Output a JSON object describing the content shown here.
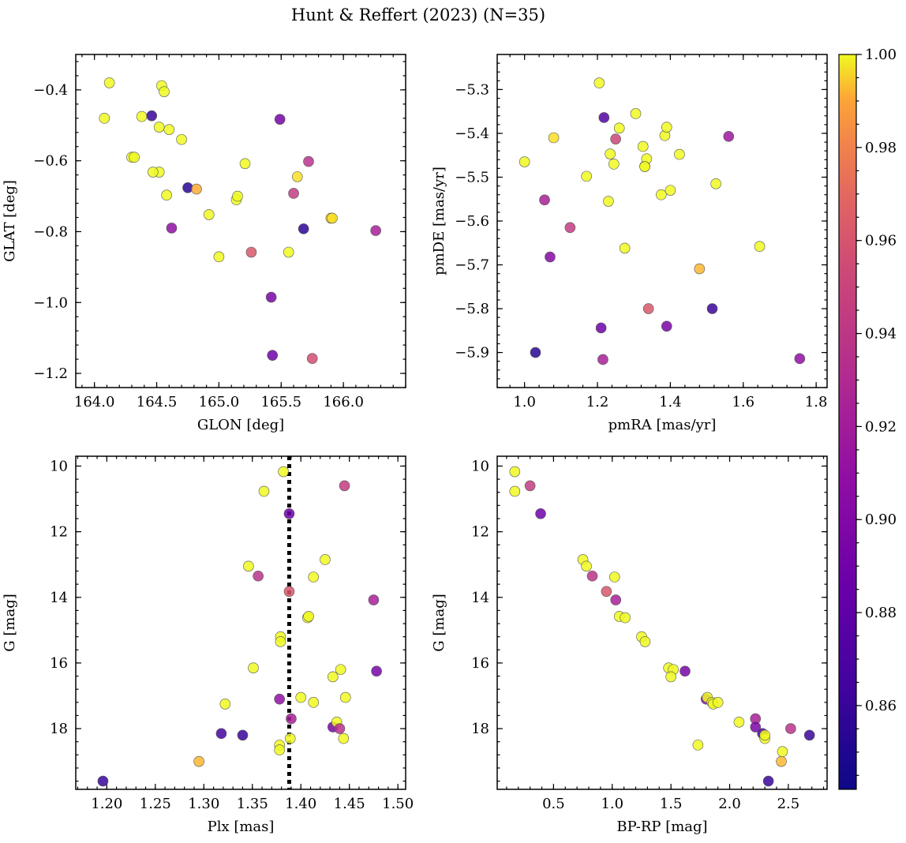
{
  "figure": {
    "title": "Hunt & Reffert (2023) (N=35)"
  },
  "colorbar": {
    "colormap": "plasma",
    "min": 0.842,
    "max": 1.0,
    "ticks": [
      0.86,
      0.88,
      0.9,
      0.92,
      0.94,
      0.96,
      0.98,
      1.0
    ],
    "tick_labels": [
      "0.86",
      "0.88",
      "0.90",
      "0.92",
      "0.94",
      "0.96",
      "0.98",
      "1.00"
    ]
  },
  "chart_data": [
    {
      "type": "scatter",
      "id": "glon-glat",
      "xlabel": "GLON [deg]",
      "ylabel": "GLAT [deg]",
      "xlim": [
        163.85,
        166.5
      ],
      "ylim": [
        -1.24,
        -0.3
      ],
      "y_inverted": false,
      "xticks": [
        164.0,
        164.5,
        165.0,
        165.5,
        166.0
      ],
      "xtick_labels": [
        "164.0",
        "164.5",
        "165.0",
        "165.5",
        "166.0"
      ],
      "yticks": [
        -0.4,
        -0.6,
        -0.8,
        -1.0,
        -1.2
      ],
      "ytick_labels": [
        "−0.4",
        "−0.6",
        "−0.8",
        "−1.0",
        "−1.2"
      ],
      "points": [
        [
          164.08,
          -0.48,
          1.0
        ],
        [
          164.12,
          -0.38,
          1.0
        ],
        [
          164.3,
          -0.59,
          1.0
        ],
        [
          164.32,
          -0.59,
          1.0
        ],
        [
          164.38,
          -0.475,
          1.0
        ],
        [
          164.46,
          -0.473,
          0.855
        ],
        [
          164.52,
          -0.505,
          1.0
        ],
        [
          164.54,
          -0.388,
          1.0
        ],
        [
          164.56,
          -0.405,
          1.0
        ],
        [
          164.52,
          -0.632,
          1.0
        ],
        [
          164.58,
          -0.697,
          1.0
        ],
        [
          164.6,
          -0.512,
          1.0
        ],
        [
          164.62,
          -0.79,
          0.89
        ],
        [
          164.7,
          -0.54,
          1.0
        ],
        [
          164.75,
          -0.676,
          0.85
        ],
        [
          164.82,
          -0.68,
          0.97
        ],
        [
          164.92,
          -0.752,
          1.0
        ],
        [
          165.0,
          -0.871,
          1.0
        ],
        [
          165.14,
          -0.71,
          1.0
        ],
        [
          165.15,
          -0.7,
          1.0
        ],
        [
          165.21,
          -0.608,
          1.0
        ],
        [
          165.26,
          -0.858,
          0.93
        ],
        [
          165.42,
          -0.985,
          0.88
        ],
        [
          165.43,
          -1.149,
          0.875
        ],
        [
          165.49,
          -0.483,
          0.878
        ],
        [
          165.56,
          -0.858,
          1.0
        ],
        [
          165.6,
          -0.692,
          0.915
        ],
        [
          165.63,
          -0.645,
          0.99
        ],
        [
          165.68,
          -0.792,
          0.852
        ],
        [
          165.72,
          -0.602,
          0.91
        ],
        [
          165.75,
          -1.158,
          0.925
        ],
        [
          165.9,
          -0.762,
          0.99
        ],
        [
          165.91,
          -0.762,
          0.99
        ],
        [
          166.26,
          -0.797,
          0.9
        ],
        [
          164.47,
          -0.632,
          1.0
        ]
      ]
    },
    {
      "type": "scatter",
      "id": "pmra-pmde",
      "xlabel": "pmRA [mas/yr]",
      "ylabel": "pmDE [mas/yr]",
      "xlim": [
        0.925,
        1.83
      ],
      "ylim": [
        -5.98,
        -5.22
      ],
      "y_inverted": false,
      "xticks": [
        1.0,
        1.2,
        1.4,
        1.6,
        1.8
      ],
      "xtick_labels": [
        "1.0",
        "1.2",
        "1.4",
        "1.6",
        "1.8"
      ],
      "yticks": [
        -5.3,
        -5.4,
        -5.5,
        -5.6,
        -5.7,
        -5.8,
        -5.9
      ],
      "ytick_labels": [
        "−5.3",
        "−5.4",
        "−5.5",
        "−5.6",
        "−5.7",
        "−5.8",
        "−5.9"
      ],
      "points": [
        [
          1.0,
          -5.465,
          1.0
        ],
        [
          1.03,
          -5.9,
          0.85
        ],
        [
          1.055,
          -5.552,
          0.9
        ],
        [
          1.07,
          -5.682,
          0.885
        ],
        [
          1.08,
          -5.41,
          0.99
        ],
        [
          1.125,
          -5.615,
          0.915
        ],
        [
          1.17,
          -5.498,
          1.0
        ],
        [
          1.205,
          -5.285,
          1.0
        ],
        [
          1.21,
          -5.844,
          0.875
        ],
        [
          1.215,
          -5.916,
          0.9
        ],
        [
          1.218,
          -5.364,
          0.865
        ],
        [
          1.23,
          -5.555,
          1.0
        ],
        [
          1.235,
          -5.447,
          1.0
        ],
        [
          1.245,
          -5.47,
          1.0
        ],
        [
          1.25,
          -5.413,
          0.92
        ],
        [
          1.26,
          -5.388,
          1.0
        ],
        [
          1.275,
          -5.662,
          1.0
        ],
        [
          1.305,
          -5.355,
          1.0
        ],
        [
          1.325,
          -5.43,
          1.0
        ],
        [
          1.33,
          -5.475,
          1.0
        ],
        [
          1.335,
          -5.458,
          1.0
        ],
        [
          1.34,
          -5.8,
          0.93
        ],
        [
          1.375,
          -5.54,
          1.0
        ],
        [
          1.385,
          -5.405,
          1.0
        ],
        [
          1.39,
          -5.84,
          0.88
        ],
        [
          1.39,
          -5.386,
          1.0
        ],
        [
          1.4,
          -5.53,
          1.0
        ],
        [
          1.425,
          -5.448,
          1.0
        ],
        [
          1.48,
          -5.709,
          0.975
        ],
        [
          1.515,
          -5.8,
          0.855
        ],
        [
          1.525,
          -5.515,
          1.0
        ],
        [
          1.56,
          -5.407,
          0.895
        ],
        [
          1.645,
          -5.658,
          1.0
        ],
        [
          1.755,
          -5.914,
          0.89
        ],
        [
          1.33,
          -5.476,
          1.0
        ]
      ]
    },
    {
      "type": "scatter",
      "id": "plx-g",
      "xlabel": "Plx [mas]",
      "ylabel": "G [mag]",
      "xlim": [
        1.168,
        1.508
      ],
      "ylim": [
        19.85,
        9.7
      ],
      "y_inverted": true,
      "reference_line": {
        "x": 1.388,
        "style": "dotted"
      },
      "xticks": [
        1.2,
        1.25,
        1.3,
        1.35,
        1.4,
        1.45,
        1.5
      ],
      "xtick_labels": [
        "1.20",
        "1.25",
        "1.30",
        "1.35",
        "1.40",
        "1.45",
        "1.50"
      ],
      "yticks": [
        10,
        12,
        14,
        16,
        18
      ],
      "ytick_labels": [
        "10",
        "12",
        "14",
        "16",
        "18"
      ],
      "points": [
        [
          1.196,
          19.6,
          0.855
        ],
        [
          1.295,
          19.0,
          0.975
        ],
        [
          1.318,
          18.15,
          0.86
        ],
        [
          1.322,
          17.25,
          1.0
        ],
        [
          1.34,
          18.2,
          0.855
        ],
        [
          1.346,
          13.05,
          1.0
        ],
        [
          1.351,
          16.15,
          1.0
        ],
        [
          1.356,
          13.35,
          0.91
        ],
        [
          1.362,
          10.77,
          1.0
        ],
        [
          1.378,
          18.5,
          1.0
        ],
        [
          1.378,
          18.65,
          1.0
        ],
        [
          1.378,
          17.1,
          0.89
        ],
        [
          1.379,
          15.2,
          1.0
        ],
        [
          1.379,
          15.35,
          1.0
        ],
        [
          1.382,
          10.17,
          1.0
        ],
        [
          1.388,
          11.45,
          0.875
        ],
        [
          1.388,
          13.82,
          0.93
        ],
        [
          1.389,
          18.3,
          1.0
        ],
        [
          1.39,
          17.7,
          0.9
        ],
        [
          1.4,
          17.05,
          1.0
        ],
        [
          1.407,
          14.62,
          1.0
        ],
        [
          1.408,
          14.58,
          1.0
        ],
        [
          1.413,
          13.38,
          1.0
        ],
        [
          1.413,
          17.2,
          1.0
        ],
        [
          1.425,
          12.85,
          1.0
        ],
        [
          1.433,
          17.95,
          0.88
        ],
        [
          1.433,
          16.42,
          1.0
        ],
        [
          1.437,
          17.8,
          1.0
        ],
        [
          1.44,
          18.0,
          0.91
        ],
        [
          1.441,
          16.2,
          1.0
        ],
        [
          1.445,
          10.6,
          0.915
        ],
        [
          1.444,
          18.3,
          1.0
        ],
        [
          1.446,
          17.05,
          1.0
        ],
        [
          1.475,
          14.08,
          0.9
        ],
        [
          1.478,
          16.25,
          0.88
        ]
      ]
    },
    {
      "type": "scatter",
      "id": "bprp-g",
      "xlabel": "BP-RP [mag]",
      "ylabel": "G [mag]",
      "xlim": [
        0.02,
        2.83
      ],
      "ylim": [
        19.85,
        9.7
      ],
      "y_inverted": true,
      "xticks": [
        0.5,
        1.0,
        1.5,
        2.0,
        2.5
      ],
      "xtick_labels": [
        "0.5",
        "1.0",
        "1.5",
        "2.0",
        "2.5"
      ],
      "yticks": [
        10,
        12,
        14,
        16,
        18
      ],
      "ytick_labels": [
        "10",
        "12",
        "14",
        "16",
        "18"
      ],
      "points": [
        [
          0.17,
          10.17,
          1.0
        ],
        [
          0.17,
          10.77,
          1.0
        ],
        [
          0.3,
          10.6,
          0.915
        ],
        [
          0.39,
          11.45,
          0.875
        ],
        [
          0.75,
          12.85,
          1.0
        ],
        [
          0.78,
          13.05,
          1.0
        ],
        [
          0.83,
          13.35,
          0.91
        ],
        [
          0.95,
          13.82,
          0.93
        ],
        [
          1.02,
          13.38,
          1.0
        ],
        [
          1.03,
          14.08,
          0.9
        ],
        [
          1.06,
          14.58,
          1.0
        ],
        [
          1.11,
          14.62,
          1.0
        ],
        [
          1.25,
          15.2,
          1.0
        ],
        [
          1.28,
          15.35,
          1.0
        ],
        [
          1.48,
          16.15,
          1.0
        ],
        [
          1.52,
          16.2,
          1.0
        ],
        [
          1.5,
          16.42,
          1.0
        ],
        [
          1.62,
          16.25,
          0.88
        ],
        [
          1.73,
          18.5,
          1.0
        ],
        [
          1.8,
          17.1,
          0.89
        ],
        [
          1.81,
          17.05,
          1.0
        ],
        [
          1.85,
          17.2,
          1.0
        ],
        [
          1.86,
          17.25,
          1.0
        ],
        [
          1.9,
          17.2,
          1.0
        ],
        [
          2.08,
          17.8,
          1.0
        ],
        [
          2.22,
          17.7,
          0.9
        ],
        [
          2.22,
          17.95,
          0.88
        ],
        [
          2.28,
          18.15,
          0.86
        ],
        [
          2.3,
          18.3,
          1.0
        ],
        [
          2.3,
          18.2,
          1.0
        ],
        [
          2.33,
          19.6,
          0.855
        ],
        [
          2.44,
          19.0,
          0.975
        ],
        [
          2.45,
          18.7,
          1.0
        ],
        [
          2.52,
          18.0,
          0.91
        ],
        [
          2.68,
          18.2,
          0.855
        ]
      ]
    }
  ]
}
